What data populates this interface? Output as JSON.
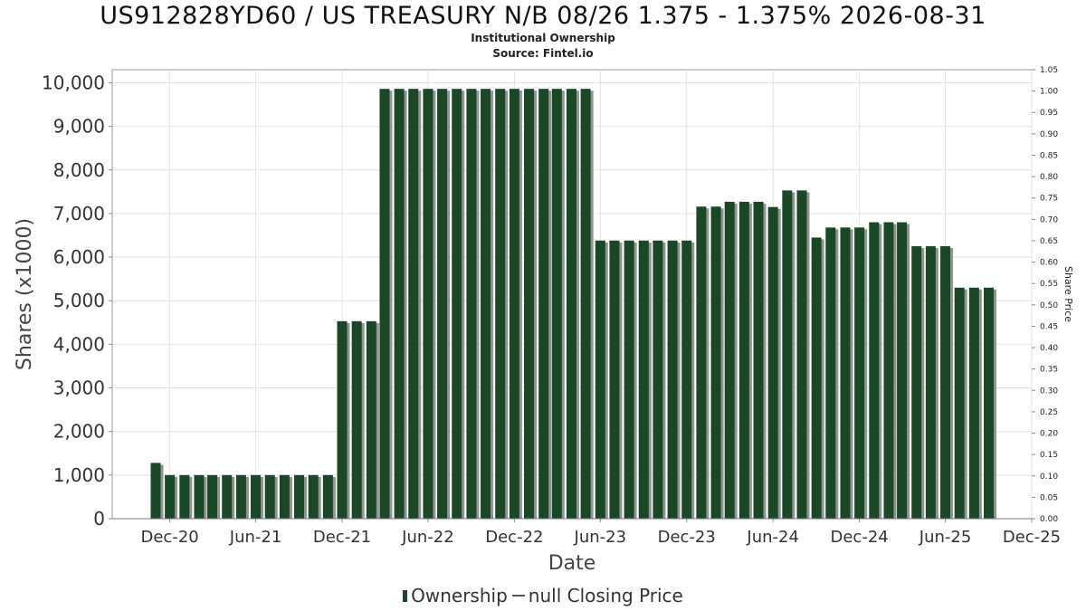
{
  "chart_data": {
    "type": "bar",
    "title": "US912828YD60 / US TREASURY N/B 08/26 1.375 - 1.375% 2026-08-31",
    "subtitles": [
      "Institutional Ownership",
      "Source: Fintel.io"
    ],
    "xlabel": "Date",
    "ylabel": "Shares (x1000)",
    "y2label": "Share Price",
    "ylim": [
      0,
      10300
    ],
    "y2lim": [
      0,
      1.05
    ],
    "xlim": [
      "2020-08-01",
      "2025-12-01"
    ],
    "yticks": [
      0,
      1000,
      2000,
      3000,
      4000,
      5000,
      6000,
      7000,
      8000,
      9000,
      10000
    ],
    "ytick_labels": [
      "0",
      "1,000",
      "2,000",
      "3,000",
      "4,000",
      "5,000",
      "6,000",
      "7,000",
      "8,000",
      "9,000",
      "10,000"
    ],
    "y2ticks": [
      0.0,
      0.05,
      0.1,
      0.15,
      0.2,
      0.25,
      0.3,
      0.35,
      0.4,
      0.45,
      0.5,
      0.55,
      0.6,
      0.65,
      0.7,
      0.75,
      0.8,
      0.85,
      0.9,
      0.95,
      1.0,
      1.05
    ],
    "y2tick_labels": [
      "0.00",
      "0.05",
      "0.10",
      "0.15",
      "0.20",
      "0.25",
      "0.30",
      "0.35",
      "0.40",
      "0.45",
      "0.50",
      "0.55",
      "0.60",
      "0.65",
      "0.70",
      "0.75",
      "0.80",
      "0.85",
      "0.90",
      "0.95",
      "1.00",
      "1.05"
    ],
    "xticks": [
      {
        "date": "2020-12-01",
        "label": "Dec-20"
      },
      {
        "date": "2021-06-01",
        "label": "Jun-21"
      },
      {
        "date": "2021-12-01",
        "label": "Dec-21"
      },
      {
        "date": "2022-06-01",
        "label": "Jun-22"
      },
      {
        "date": "2022-12-01",
        "label": "Dec-22"
      },
      {
        "date": "2023-06-01",
        "label": "Jun-23"
      },
      {
        "date": "2023-12-01",
        "label": "Dec-23"
      },
      {
        "date": "2024-06-01",
        "label": "Jun-24"
      },
      {
        "date": "2024-12-01",
        "label": "Dec-24"
      },
      {
        "date": "2025-06-01",
        "label": "Jun-25"
      },
      {
        "date": "2025-12-01",
        "label": "Dec-25"
      }
    ],
    "grid": true,
    "legend_position": "bottom",
    "series": [
      {
        "name": "Ownership",
        "color": "#1a4726",
        "x": [
          "2020-11-01",
          "2020-12-01",
          "2021-01-01",
          "2021-02-01",
          "2021-03-01",
          "2021-04-01",
          "2021-05-01",
          "2021-06-01",
          "2021-07-01",
          "2021-08-01",
          "2021-09-01",
          "2021-10-01",
          "2021-11-01",
          "2021-12-01",
          "2022-01-01",
          "2022-02-01",
          "2022-03-01",
          "2022-04-01",
          "2022-05-01",
          "2022-06-01",
          "2022-07-01",
          "2022-08-01",
          "2022-09-01",
          "2022-10-01",
          "2022-11-01",
          "2022-12-01",
          "2023-01-01",
          "2023-02-01",
          "2023-03-01",
          "2023-04-01",
          "2023-05-01",
          "2023-06-01",
          "2023-07-01",
          "2023-08-01",
          "2023-09-01",
          "2023-10-01",
          "2023-11-01",
          "2023-12-01",
          "2024-01-01",
          "2024-02-01",
          "2024-03-01",
          "2024-04-01",
          "2024-05-01",
          "2024-06-01",
          "2024-07-01",
          "2024-08-01",
          "2024-09-01",
          "2024-10-01",
          "2024-11-01",
          "2024-12-01",
          "2025-01-01",
          "2025-02-01",
          "2025-03-01",
          "2025-04-01",
          "2025-05-01",
          "2025-06-01",
          "2025-07-01",
          "2025-08-01",
          "2025-09-01"
        ],
        "values": [
          1280,
          1000,
          1000,
          1000,
          1000,
          1000,
          1000,
          1000,
          1000,
          1000,
          1000,
          1000,
          1000,
          4530,
          4530,
          4530,
          9860,
          9860,
          9860,
          9860,
          9860,
          9860,
          9860,
          9860,
          9860,
          9860,
          9860,
          9860,
          9860,
          9860,
          9860,
          6380,
          6380,
          6380,
          6380,
          6380,
          6380,
          6380,
          7160,
          7160,
          7270,
          7270,
          7270,
          7150,
          7530,
          7530,
          6450,
          6680,
          6680,
          6680,
          6800,
          6800,
          6800,
          6250,
          6250,
          6250,
          5300,
          5300,
          5300
        ]
      },
      {
        "name": "null Closing Price",
        "color": "#555555",
        "values": []
      }
    ]
  }
}
